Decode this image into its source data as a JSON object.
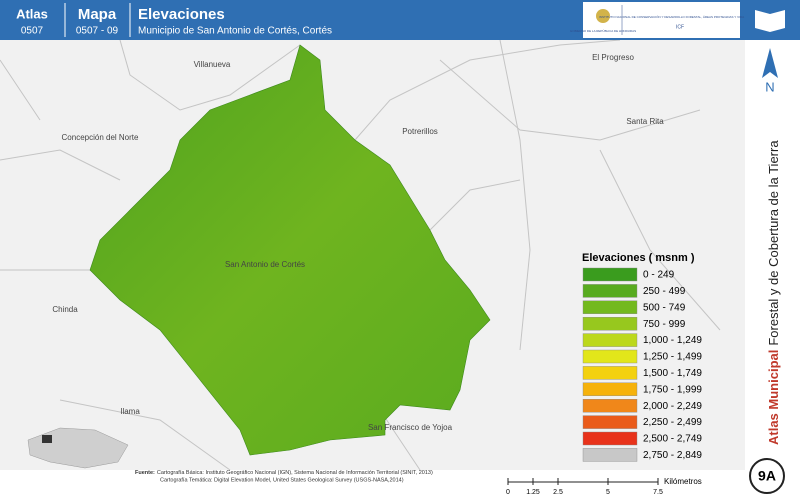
{
  "header": {
    "atlas_label": "Atlas",
    "atlas_code": "0507",
    "map_label": "Mapa",
    "map_code": "0507 - 09",
    "title": "Elevaciones",
    "subtitle": "Municipio de San Antonio de Cortés, Cortés"
  },
  "logo": {
    "gov": "GOBIERNO DE LA REPÚBLICA DE HONDURAS",
    "institute": "INSTITUTO NACIONAL DE CONSERVACIÓN Y DESARROLLO FORESTAL, ÁREAS PROTEGIDAS Y VIDA SILVESTRE",
    "acronym": "ICF"
  },
  "places": [
    "Villanueva",
    "El Progreso",
    "Concepción del Norte",
    "Potrerillos",
    "Santa Rita",
    "San Antonio de Cortés",
    "Chinda",
    "Ilama",
    "San Francisco de Yojoa"
  ],
  "legend": {
    "title": "Elevaciones ( msnm )",
    "items": [
      {
        "label": "0 - 249",
        "color": "#3a9c1e"
      },
      {
        "label": "250 - 499",
        "color": "#58ab1f"
      },
      {
        "label": "500 - 749",
        "color": "#73b91e"
      },
      {
        "label": "750 - 999",
        "color": "#97c81e"
      },
      {
        "label": "1,000 - 1,249",
        "color": "#bcd81c"
      },
      {
        "label": "1,250 - 1,499",
        "color": "#e2e61a"
      },
      {
        "label": "1,500 - 1,749",
        "color": "#f3d10f"
      },
      {
        "label": "1,750 - 1,999",
        "color": "#f6b20b"
      },
      {
        "label": "2,000 - 2,249",
        "color": "#f0871a"
      },
      {
        "label": "2,250 - 2,499",
        "color": "#ea5b1a"
      },
      {
        "label": "2,500 - 2,749",
        "color": "#e8321a"
      },
      {
        "label": "2,750 - 2,849",
        "color": "#c8c8c8"
      }
    ]
  },
  "sidebar": {
    "north": "N",
    "atlas_bold": "Atlas Municipal",
    "atlas_rest": "Forestal y de Cobertura de la Tierra",
    "page": "9A"
  },
  "source": {
    "label": "Fuente:",
    "line1": "Cartografía Básica: Instituto Geográfico Nacional (IGN), Sistema Nacional de Información Territorial (SINIT, 2013)",
    "line2": "Cartografía Temática: Digital Elevation Model, United States Geological Survey (USGS-NASA,2014)"
  },
  "scale": {
    "ticks": [
      0,
      1.25,
      2.5,
      5,
      7.5
    ],
    "unit": "Kilómetros"
  }
}
